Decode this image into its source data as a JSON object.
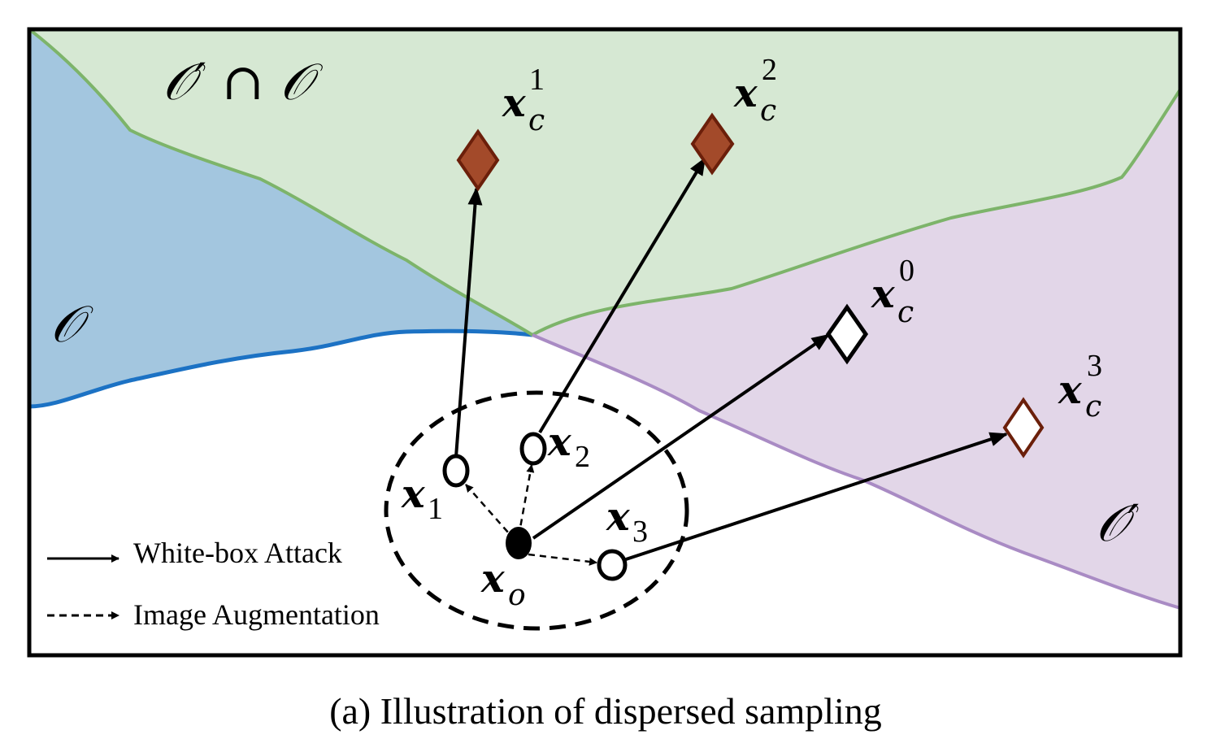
{
  "regions": {
    "o_label": "𝒪",
    "o_prime_label": "𝒪′",
    "intersection_label": "𝒪′ ∩ 𝒪"
  },
  "points": {
    "xo": {
      "base": "x",
      "sub": "o"
    },
    "x1": {
      "base": "x",
      "sub": "1"
    },
    "x2": {
      "base": "x",
      "sub": "2"
    },
    "x3": {
      "base": "x",
      "sub": "3"
    },
    "xc0": {
      "base": "x",
      "sub": "c",
      "sup": "0"
    },
    "xc1": {
      "base": "x",
      "sub": "c",
      "sup": "1"
    },
    "xc2": {
      "base": "x",
      "sub": "c",
      "sup": "2"
    },
    "xc3": {
      "base": "x",
      "sub": "c",
      "sup": "3"
    }
  },
  "legend": {
    "solid_label": "White-box Attack",
    "dashed_label": "Image Augmentation"
  },
  "caption": "(a) Illustration of dispersed sampling",
  "colors": {
    "blue_region": "#a3c6df",
    "blue_border": "#1c72c4",
    "green_region": "#d6e8d3",
    "green_border": "#7db46a",
    "purple_region": "#e2d6e8",
    "purple_border": "#a98bc4",
    "diamond_fill": "#a34a2a",
    "diamond_stroke": "#6b1f0a"
  }
}
